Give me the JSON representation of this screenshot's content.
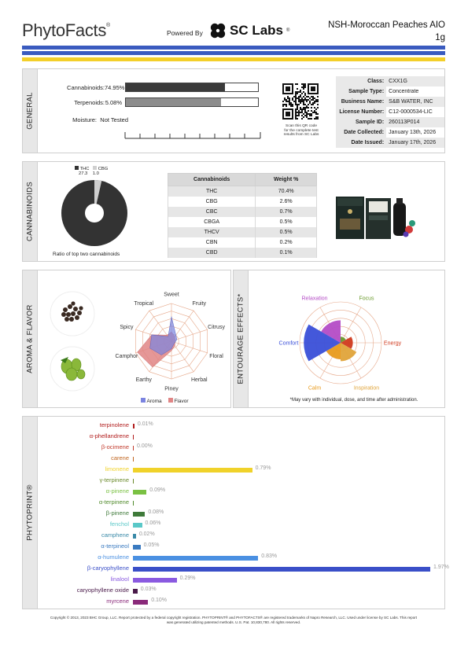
{
  "header": {
    "brand": "PhytoFacts",
    "brand_mark": "®",
    "powered_by": "Powered By",
    "lab_name": "SC Labs",
    "lab_mark": "®",
    "product_line1": "NSH-Moroccan Peaches AIO",
    "product_line2": "1g",
    "band_colors": [
      "#3a5bbf",
      "#f3cf2a"
    ]
  },
  "general": {
    "section_label": "GENERAL",
    "rows": [
      {
        "label": "Cannabinoids:",
        "value": "74.95%",
        "fraction": 0.7495,
        "color": "#3a3a3a"
      },
      {
        "label": "Terpenoids:",
        "value": "5.08%",
        "fraction": 0.0508,
        "color": "#8c8c8c"
      },
      {
        "label": "Moisture:",
        "value": "Not Tested"
      }
    ],
    "qr_caption": [
      "Scan this QR code",
      "for the complete test",
      "results from SC Labs"
    ],
    "info": [
      {
        "key": "Class:",
        "value": "CXX1G"
      },
      {
        "key": "Sample Type:",
        "value": "Concentrate"
      },
      {
        "key": "Business Name:",
        "value": "S&B WATER, INC"
      },
      {
        "key": "License Number:",
        "value": "C12-0000534-LIC"
      },
      {
        "key": "Sample ID:",
        "value": "260113P014"
      },
      {
        "key": "Date Collected:",
        "value": "January 13th, 2026"
      },
      {
        "key": "Date Issued:",
        "value": "January 17th, 2026"
      }
    ]
  },
  "cannabinoids": {
    "section_label": "CANNABINOIDS",
    "pie_legend": [
      {
        "name": "THC",
        "value": "27.3",
        "color": "#333333"
      },
      {
        "name": "CBG",
        "value": "1.0",
        "color": "#cfcfcf"
      }
    ],
    "pie_caption": "Ratio of top two cannabinoids",
    "table_headers": [
      "Cannabinoids",
      "Weight %"
    ],
    "table_rows": [
      [
        "THC",
        "70.4%"
      ],
      [
        "CBG",
        "2.6%"
      ],
      [
        "CBC",
        "0.7%"
      ],
      [
        "CBGA",
        "0.5%"
      ],
      [
        "THCV",
        "0.5%"
      ],
      [
        "CBN",
        "0.2%"
      ],
      [
        "CBD",
        "0.1%"
      ]
    ]
  },
  "aroma": {
    "section_label": "AROMA & FLAVOR",
    "axes": [
      "Sweet",
      "Fruity",
      "Citrusy",
      "Floral",
      "Herbal",
      "Piney",
      "Earthy",
      "Camphor",
      "Spicy",
      "Tropical"
    ],
    "legend": [
      {
        "name": "Aroma",
        "color": "#7b84e0"
      },
      {
        "name": "Flavor",
        "color": "#e08585"
      }
    ]
  },
  "entourage": {
    "section_label": "ENTOURAGE EFFECTS*",
    "effects": [
      {
        "name": "Relaxation",
        "color": "#b44cc6"
      },
      {
        "name": "Focus",
        "color": "#6a9a2c"
      },
      {
        "name": "Energy",
        "color": "#d03a1e"
      },
      {
        "name": "Inspiration",
        "color": "#e0a43a"
      },
      {
        "name": "Calm",
        "color": "#e89a1c"
      },
      {
        "name": "Comfort",
        "color": "#3a4fd8"
      }
    ],
    "note": "*May vary with individual, dose, and time after administration."
  },
  "phytoprint": {
    "section_label": "PHYTOPRINT®",
    "terpenes": [
      {
        "name": "terpinolene",
        "value": "0.01%",
        "amount": 0.01,
        "color": "#b11c1c"
      },
      {
        "name": "α-phellandrene",
        "value": "",
        "amount": 0.0,
        "color": "#b11c1c"
      },
      {
        "name": "β-ocimene",
        "value": "0.00%",
        "amount": 0.0,
        "color": "#c0392b"
      },
      {
        "name": "carene",
        "value": "",
        "amount": 0.0,
        "color": "#c0651f"
      },
      {
        "name": "limonene",
        "value": "0.79%",
        "amount": 0.79,
        "color": "#f0d22a"
      },
      {
        "name": "γ-terpinene",
        "value": "",
        "amount": 0.0,
        "color": "#6a8a2a"
      },
      {
        "name": "α-pinene",
        "value": "0.09%",
        "amount": 0.09,
        "color": "#7ac143"
      },
      {
        "name": "α-terpinene",
        "value": "",
        "amount": 0.0,
        "color": "#4f8a2a"
      },
      {
        "name": "β-pinene",
        "value": "0.08%",
        "amount": 0.08,
        "color": "#3f7a3a"
      },
      {
        "name": "fenchol",
        "value": "0.06%",
        "amount": 0.06,
        "color": "#5ac8c8"
      },
      {
        "name": "camphene",
        "value": "0.02%",
        "amount": 0.02,
        "color": "#3a8aa8"
      },
      {
        "name": "α-terpineol",
        "value": "0.05%",
        "amount": 0.05,
        "color": "#3a7ac0"
      },
      {
        "name": "α-humulene",
        "value": "0.83%",
        "amount": 0.83,
        "color": "#4a90e2"
      },
      {
        "name": "β-caryophyllene",
        "value": "1.97%",
        "amount": 1.97,
        "color": "#3a4fc8"
      },
      {
        "name": "linalool",
        "value": "0.29%",
        "amount": 0.29,
        "color": "#8a5ae0"
      },
      {
        "name": "caryophyllene oxide",
        "value": "0.03%",
        "amount": 0.03,
        "color": "#4a1a4a"
      },
      {
        "name": "myrcene",
        "value": "0.10%",
        "amount": 0.1,
        "color": "#8a2a7a"
      }
    ]
  },
  "footer": {
    "line1": "Copyright © 2013, 2023 BHC Group, LLC. Report protected by a federal copyright registration. PHYTOPRINT® and PHYTOFACTS® are registered trademarks of Napro Research, LLC. Used under license by SC Labs. This report",
    "line2": "was generated utilizing patented methods. U.S. Pat. 10,830,780. All rights reserved."
  }
}
